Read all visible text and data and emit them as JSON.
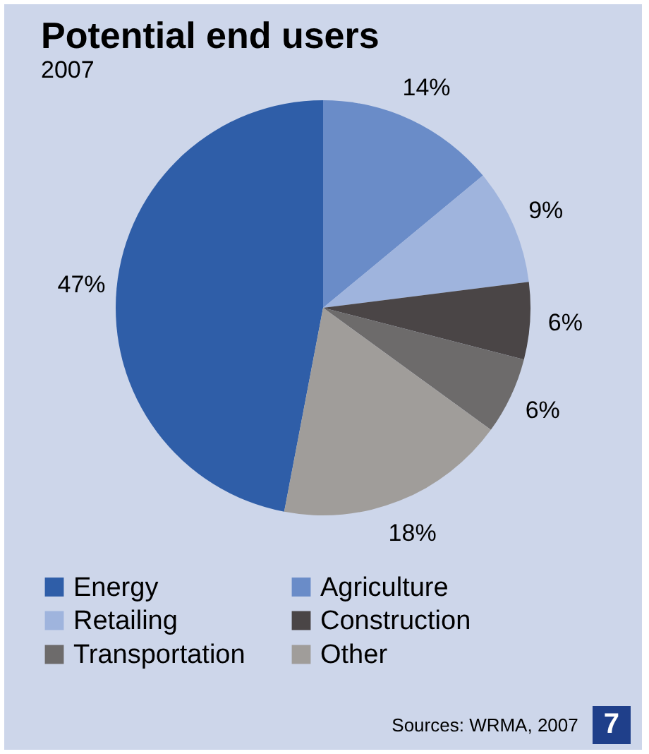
{
  "chart_data": {
    "type": "pie",
    "title": "Potential end users",
    "subtitle": "2007",
    "categories": [
      "Energy",
      "Agriculture",
      "Retailing",
      "Construction",
      "Transportation",
      "Other"
    ],
    "values": [
      47,
      14,
      9,
      6,
      6,
      18
    ],
    "colors": [
      "#2f5ea8",
      "#6a8cc8",
      "#9fb4dd",
      "#4a4546",
      "#6d6b6b",
      "#a09d9a"
    ],
    "value_labels": [
      "47%",
      "14%",
      "9%",
      "6%",
      "6%",
      "18%"
    ],
    "legend": "bottom",
    "annotations": [
      "Sources: WRMA, 2007",
      "7"
    ]
  }
}
